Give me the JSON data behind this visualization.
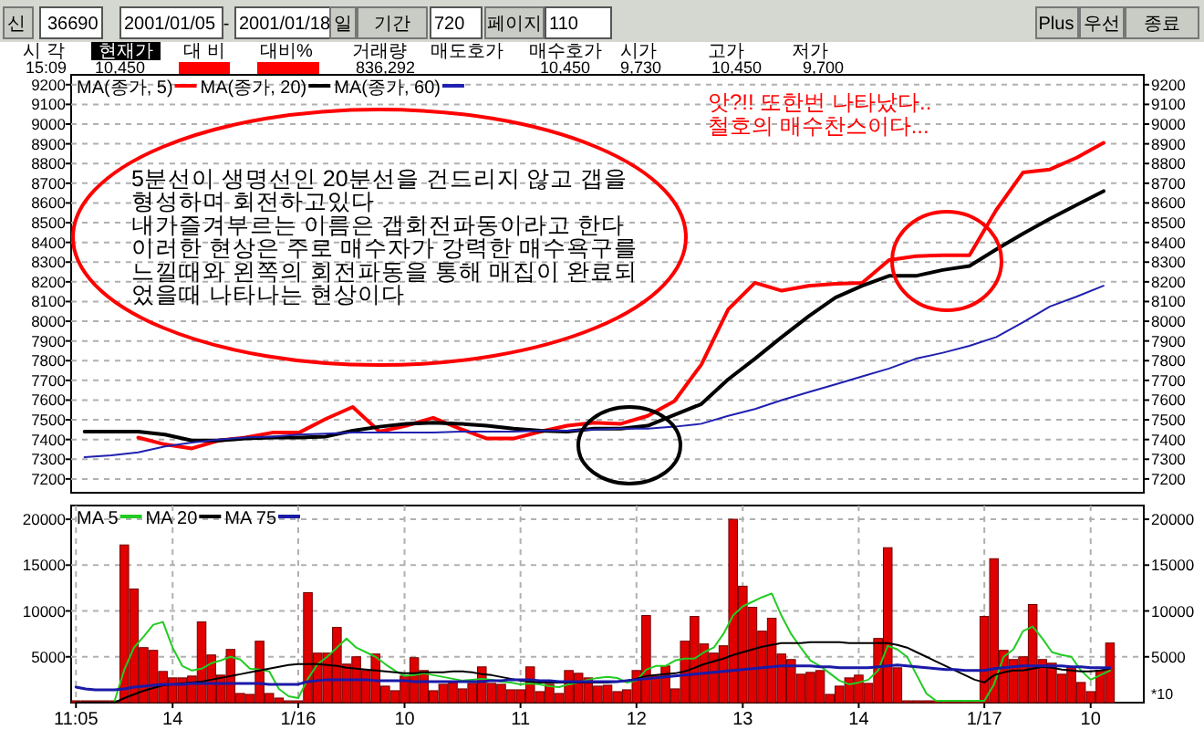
{
  "chart_data": [
    {
      "type": "other",
      "annotations": [
        "신",
        "36690",
        "2001/01/05",
        "-",
        "2001/01/18",
        "일",
        "기간",
        "720",
        "페이지",
        "110",
        "Plus",
        "우선",
        "종료",
        "시 각",
        "현재가",
        "대 비",
        "대비%",
        "거래량",
        "매도호가",
        "매수호가",
        "시가",
        "고가",
        "저가",
        "15:09",
        "10,450",
        "836,292",
        "10,450",
        "9,730",
        "10,450",
        "9,700"
      ]
    },
    {
      "type": "line",
      "categories": [
        null,
        null,
        null,
        null,
        null,
        null,
        null,
        null,
        null,
        null,
        null,
        null,
        null,
        null,
        null,
        null,
        null,
        null,
        null,
        null,
        null,
        null,
        null,
        null,
        null,
        null,
        null,
        null,
        null,
        null,
        null,
        null,
        null,
        null,
        null,
        null,
        null,
        null,
        null,
        null
      ],
      "series": [
        {
          "name": "MA(종가, 5)",
          "color": "#ff0000",
          "values": [
            null,
            null,
            7410,
            7375,
            7355,
            7395,
            7410,
            7435,
            7435,
            7505,
            7565,
            7440,
            7470,
            7510,
            7455,
            7405,
            7405,
            7440,
            7470,
            7485,
            7480,
            7520,
            7595,
            7780,
            8060,
            8195,
            8155,
            8180,
            8190,
            8195,
            8310,
            8330,
            8335,
            8335,
            8565,
            8755,
            8770,
            8830,
            8905,
            null
          ]
        },
        {
          "name": "MA(종가, 20)",
          "color": "#000000",
          "values": [
            7440,
            7440,
            7440,
            7425,
            7395,
            7395,
            7405,
            7410,
            7410,
            7415,
            7445,
            7465,
            7480,
            7485,
            7480,
            7470,
            7455,
            7445,
            7440,
            7455,
            7455,
            7470,
            7525,
            7580,
            7705,
            7810,
            7920,
            8025,
            8120,
            8180,
            8230,
            8230,
            8260,
            8280,
            8365,
            8445,
            8520,
            8590,
            8660,
            null
          ]
        },
        {
          "name": "MA(종가, 60)",
          "color": "#2020b0",
          "values": [
            7310,
            7320,
            7335,
            7365,
            7385,
            7400,
            7410,
            7415,
            7425,
            7430,
            7435,
            7435,
            7435,
            7435,
            7440,
            7440,
            7440,
            7445,
            7445,
            7450,
            7455,
            7455,
            7465,
            7480,
            7520,
            7555,
            7600,
            7640,
            7680,
            7720,
            7760,
            7810,
            7840,
            7875,
            7920,
            7995,
            8075,
            8125,
            8180,
            null
          ]
        }
      ],
      "ylim": [
        7130,
        9250
      ],
      "yticks": [
        7200,
        7300,
        7400,
        7500,
        7600,
        7700,
        7800,
        7900,
        8000,
        8100,
        8200,
        8300,
        8400,
        8500,
        8600,
        8700,
        8800,
        8900,
        9000,
        9100,
        9200
      ],
      "y2lim": [
        7130,
        9250
      ],
      "y2ticks": [
        7200,
        7300,
        7400,
        7500,
        7600,
        7700,
        7800,
        7900,
        8000,
        8100,
        8200,
        8300,
        8400,
        8500,
        8600,
        8700,
        8800,
        8900,
        9000,
        9100,
        9200
      ],
      "tick_labels": "y",
      "grid": "y",
      "legend": "top left",
      "annotations": [
        "5분선이 생명선인 20분선을 건드리지 않고 갭을\n형성하며 회전하고있다\n내가즐겨부르는 이름은 갭회전파동이라고 한다\n이러한 현상은 주로 매수자가 강력한 매수욕구를\n느낄때와 왼쪽의 회전파동을 통해 매집이 완료되\n었을때 나타나는 현상이다",
        "앗?!! 또한번 나타났다..\n철호의 매수찬스이다..."
      ]
    },
    {
      "type": "bar",
      "categories": [
        "11:05",
        null,
        null,
        null,
        null,
        null,
        null,
        null,
        null,
        null,
        "14",
        null,
        null,
        null,
        null,
        null,
        null,
        null,
        null,
        null,
        null,
        null,
        null,
        "1/16",
        null,
        null,
        null,
        null,
        null,
        null,
        null,
        null,
        null,
        null,
        "10",
        null,
        null,
        null,
        null,
        null,
        null,
        null,
        null,
        null,
        null,
        null,
        "11",
        null,
        null,
        null,
        null,
        null,
        null,
        null,
        null,
        null,
        null,
        null,
        "12",
        null,
        null,
        null,
        null,
        null,
        null,
        null,
        null,
        null,
        null,
        "13",
        null,
        null,
        null,
        null,
        null,
        null,
        null,
        null,
        null,
        null,
        null,
        "14",
        null,
        null,
        null,
        null,
        null,
        null,
        null,
        null,
        null,
        null,
        null,
        null,
        "1/17",
        null,
        null,
        null,
        null,
        null,
        null,
        null,
        null,
        null,
        null,
        "10",
        null,
        null,
        null,
        null,
        null
      ],
      "series": [
        {
          "type": "bar",
          "color": "#e00000",
          "values": [
            200,
            200,
            200,
            200,
            200,
            17200,
            12400,
            6000,
            5700,
            3400,
            2700,
            2700,
            2900,
            8800,
            5200,
            3000,
            5800,
            1000,
            900,
            6700,
            1000,
            500,
            200,
            200,
            12000,
            5400,
            5400,
            8200,
            4200,
            5000,
            3500,
            5300,
            1800,
            1300,
            2900,
            4900,
            3500,
            1300,
            2000,
            2200,
            1500,
            2100,
            3900,
            2100,
            2000,
            1400,
            1400,
            3900,
            1200,
            2000,
            1000,
            3500,
            3200,
            2700,
            1800,
            1900,
            1200,
            1400,
            3500,
            9500,
            2900,
            4000,
            1500,
            6700,
            9400,
            6400,
            5400,
            6200,
            20000,
            12700,
            10400,
            7800,
            9200,
            5300,
            4700,
            3100,
            3300,
            3500,
            900,
            1800,
            2700,
            3000,
            2100,
            7000,
            16900,
            3800,
            200,
            200,
            200,
            200,
            200,
            200,
            200,
            200,
            9400,
            15700,
            5700,
            4700,
            5000,
            10700,
            4700,
            4300,
            3100,
            3900,
            2200,
            1200,
            3500,
            6500,
            null,
            null,
            null
          ]
        },
        {
          "type": "line",
          "name": "MA 5",
          "color": "#22cc22",
          "values": [
            null,
            null,
            null,
            null,
            200,
            3600,
            6000,
            7200,
            8500,
            8800,
            6000,
            4000,
            3500,
            3700,
            4300,
            4600,
            5000,
            4700,
            3700,
            3600,
            3400,
            1500,
            700,
            500,
            2600,
            4200,
            5000,
            6000,
            7000,
            6000,
            5500,
            5000,
            4200,
            3500,
            2900,
            3000,
            3200,
            3000,
            2800,
            2600,
            2400,
            2500,
            2600,
            2500,
            2300,
            2200,
            2000,
            2100,
            2000,
            1800,
            1700,
            2000,
            2200,
            2500,
            2700,
            2800,
            2700,
            2200,
            2400,
            3600,
            4000,
            4000,
            4600,
            4800,
            4800,
            5500,
            6000,
            7500,
            9500,
            10500,
            11000,
            11500,
            11900,
            9500,
            7500,
            6000,
            4600,
            4000,
            3200,
            2400,
            2000,
            2200,
            2500,
            3500,
            6200,
            5800,
            5000,
            3000,
            1000,
            200,
            200,
            200,
            200,
            200,
            200,
            2000,
            5000,
            5800,
            7800,
            8300,
            7000,
            5500,
            5200,
            5000,
            3500,
            2500,
            3000,
            3500,
            null,
            null,
            null
          ]
        },
        {
          "type": "line",
          "name": "MA 20",
          "color": "#000000",
          "values": [
            0,
            0,
            0,
            0,
            0,
            500,
            900,
            1300,
            1600,
            1900,
            2000,
            2100,
            2200,
            2300,
            2500,
            2700,
            2900,
            3100,
            3300,
            3500,
            3700,
            3900,
            4100,
            4200,
            4200,
            4200,
            4100,
            4000,
            3800,
            3700,
            3600,
            3500,
            3400,
            3300,
            3200,
            3200,
            3300,
            3300,
            3300,
            3400,
            3400,
            3300,
            3100,
            3000,
            2800,
            2600,
            2400,
            2300,
            2200,
            2200,
            2200,
            2200,
            2200,
            2200,
            2200,
            2200,
            2300,
            2400,
            2600,
            2900,
            3000,
            3100,
            3200,
            3400,
            3800,
            4200,
            4500,
            4800,
            5200,
            5500,
            5800,
            6100,
            6300,
            6500,
            6500,
            6500,
            6600,
            6600,
            6600,
            6600,
            6500,
            6500,
            6500,
            6500,
            6500,
            6300,
            6000,
            5500,
            5000,
            4500,
            4000,
            3500,
            3000,
            2500,
            2200,
            3000,
            3300,
            3500,
            3500,
            3700,
            3900,
            3800,
            3600,
            3500,
            3400,
            3400,
            3500,
            3700,
            null,
            null,
            null
          ]
        },
        {
          "type": "line",
          "name": "MA 75",
          "color": "#1a1aa8",
          "values": [
            1700,
            1500,
            1400,
            1400,
            1400,
            1500,
            1700,
            1800,
            1900,
            2000,
            2000,
            2000,
            2100,
            2100,
            2100,
            2100,
            2100,
            2100,
            2100,
            2100,
            2000,
            2000,
            2000,
            2000,
            2300,
            2400,
            2500,
            2500,
            2500,
            2500,
            2500,
            2400,
            2400,
            2400,
            2400,
            2300,
            2300,
            2300,
            2300,
            2300,
            2300,
            2300,
            2300,
            2400,
            2400,
            2500,
            2500,
            2500,
            2400,
            2400,
            2300,
            2300,
            2300,
            2300,
            2300,
            2300,
            2300,
            2400,
            2500,
            2600,
            2700,
            2800,
            2900,
            3000,
            3100,
            3200,
            3300,
            3400,
            3500,
            3600,
            3700,
            3800,
            3900,
            4000,
            4000,
            4000,
            4000,
            3900,
            3900,
            3800,
            3800,
            3800,
            3800,
            3900,
            4000,
            4100,
            4000,
            3900,
            3800,
            3700,
            3600,
            3600,
            3500,
            3500,
            3500,
            3700,
            3800,
            3900,
            4000,
            4000,
            4000,
            4000,
            4000,
            3900,
            3900,
            3800,
            3800,
            3800,
            null,
            null,
            null
          ]
        }
      ],
      "ylim": [
        0,
        21500
      ],
      "yticks": [
        5000,
        10000,
        15000,
        20000
      ],
      "y2lim": [
        0,
        21500
      ],
      "y2ticks": [
        5000,
        10000,
        15000,
        20000
      ],
      "grid": true,
      "legend": "top left",
      "y2label": "*10"
    }
  ]
}
